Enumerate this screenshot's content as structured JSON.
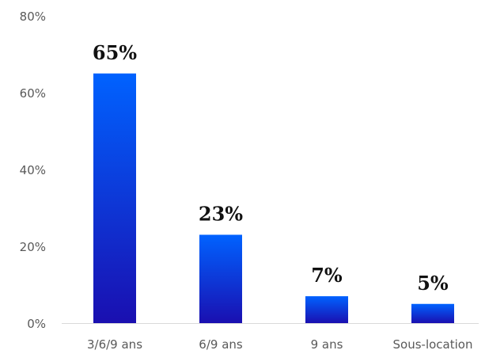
{
  "chart_data": {
    "type": "bar",
    "categories": [
      "3/6/9 ans",
      "6/9 ans",
      "9 ans",
      "Sous-location"
    ],
    "values": [
      65,
      23,
      7,
      5
    ],
    "value_labels": [
      "65%",
      "23%",
      "7%",
      "5%"
    ],
    "ylim": [
      0,
      80
    ],
    "yticks": [
      0,
      20,
      40,
      60,
      80
    ],
    "ytick_labels": [
      "0%",
      "20%",
      "40%",
      "60%",
      "80%"
    ],
    "grid": false,
    "title": "",
    "xlabel": "",
    "ylabel": "",
    "bar_gradient": {
      "top": "#0062ff",
      "bottom": "#1a0fb0"
    }
  }
}
